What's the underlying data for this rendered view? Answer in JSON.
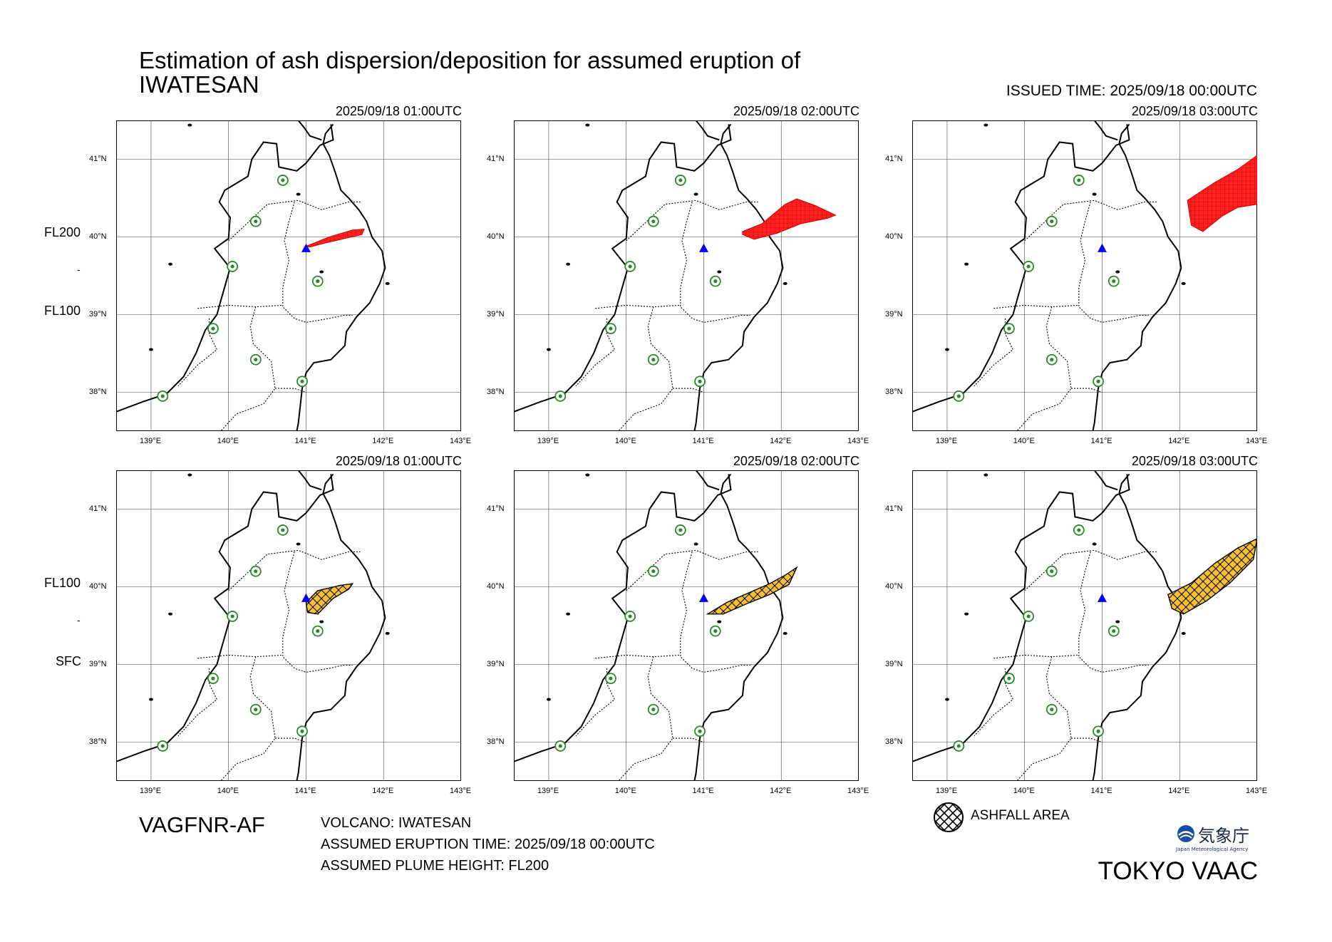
{
  "header": {
    "title_line1": "Estimation of ash dispersion/deposition for assumed eruption of",
    "title_line2": "IWATESAN",
    "issued_time": "ISSUED TIME: 2025/09/18 00:00UTC"
  },
  "rows": [
    {
      "levels": [
        "FL200",
        "-",
        "FL100"
      ],
      "ashfall": false
    },
    {
      "levels": [
        "FL100",
        "-",
        "SFC"
      ],
      "ashfall": true
    }
  ],
  "panels": [
    {
      "time": "2025/09/18 01:00UTC"
    },
    {
      "time": "2025/09/18 02:00UTC"
    },
    {
      "time": "2025/09/18 03:00UTC"
    },
    {
      "time": "2025/09/18 01:00UTC"
    },
    {
      "time": "2025/09/18 02:00UTC"
    },
    {
      "time": "2025/09/18 03:00UTC"
    }
  ],
  "axes": {
    "lon_labels": [
      "139°E",
      "140°E",
      "141°E",
      "142°E",
      "143°E"
    ],
    "lat_labels": [
      "41°N",
      "40°N",
      "39°N",
      "38°N"
    ]
  },
  "footer": {
    "product": "VAGFNR-AF",
    "volcano": "VOLCANO: IWATESAN",
    "eruption_time": "ASSUMED ERUPTION TIME: 2025/09/18 00:00UTC",
    "plume_height": "ASSUMED PLUME HEIGHT: FL200",
    "legend_label": "ASHFALL AREA",
    "center": "TOKYO VAAC",
    "logo_text": "気象庁",
    "logo_subtext": "Japan Meteorological Agency"
  },
  "colors": {
    "plume": "#ff2020",
    "ashfall": "#f8c030",
    "volcano_marker": "#0000ff",
    "station": "#2a8a2a"
  },
  "map_data": {
    "lon_range": [
      138.55,
      143.0
    ],
    "lat_range": [
      37.5,
      41.5
    ],
    "volcano": {
      "name": "IWATESAN",
      "lon": 141.0,
      "lat": 39.85
    },
    "stations": [
      [
        140.7,
        40.73
      ],
      [
        140.35,
        40.2
      ],
      [
        140.05,
        39.62
      ],
      [
        141.15,
        39.43
      ],
      [
        139.8,
        38.82
      ],
      [
        140.35,
        38.42
      ],
      [
        140.95,
        38.14
      ],
      [
        139.15,
        37.95
      ]
    ],
    "plume_cloud": [
      [
        [
          141.0,
          39.88
        ],
        [
          141.3,
          40.0
        ],
        [
          141.6,
          40.09
        ],
        [
          141.75,
          40.1
        ],
        [
          141.72,
          40.03
        ],
        [
          141.5,
          39.98
        ],
        [
          141.2,
          39.91
        ],
        [
          141.05,
          39.87
        ]
      ],
      [
        [
          141.5,
          40.07
        ],
        [
          141.75,
          40.17
        ],
        [
          142.05,
          40.42
        ],
        [
          142.2,
          40.49
        ],
        [
          142.45,
          40.4
        ],
        [
          142.7,
          40.28
        ],
        [
          142.6,
          40.24
        ],
        [
          142.25,
          40.17
        ],
        [
          141.95,
          40.05
        ],
        [
          141.65,
          39.97
        ],
        [
          141.5,
          40.03
        ]
      ],
      [
        [
          142.1,
          40.47
        ],
        [
          142.45,
          40.7
        ],
        [
          142.75,
          40.87
        ],
        [
          143.0,
          41.05
        ],
        [
          143.0,
          40.42
        ],
        [
          142.75,
          40.38
        ],
        [
          142.55,
          40.27
        ],
        [
          142.3,
          40.07
        ],
        [
          142.15,
          40.15
        ]
      ]
    ],
    "ashfall": [
      [
        [
          141.0,
          39.8
        ],
        [
          141.15,
          39.95
        ],
        [
          141.45,
          40.02
        ],
        [
          141.6,
          40.04
        ],
        [
          141.55,
          39.97
        ],
        [
          141.35,
          39.85
        ],
        [
          141.15,
          39.65
        ],
        [
          141.02,
          39.67
        ]
      ],
      [
        [
          141.05,
          39.65
        ],
        [
          141.3,
          39.8
        ],
        [
          141.6,
          39.93
        ],
        [
          141.85,
          40.04
        ],
        [
          142.05,
          40.15
        ],
        [
          142.2,
          40.25
        ],
        [
          142.1,
          40.03
        ],
        [
          141.85,
          39.9
        ],
        [
          141.55,
          39.78
        ],
        [
          141.25,
          39.65
        ]
      ],
      [
        [
          141.85,
          39.9
        ],
        [
          142.15,
          40.05
        ],
        [
          142.45,
          40.3
        ],
        [
          142.75,
          40.5
        ],
        [
          143.0,
          40.62
        ],
        [
          142.95,
          40.35
        ],
        [
          142.65,
          40.05
        ],
        [
          142.35,
          39.82
        ],
        [
          142.05,
          39.65
        ],
        [
          141.9,
          39.72
        ]
      ]
    ]
  }
}
